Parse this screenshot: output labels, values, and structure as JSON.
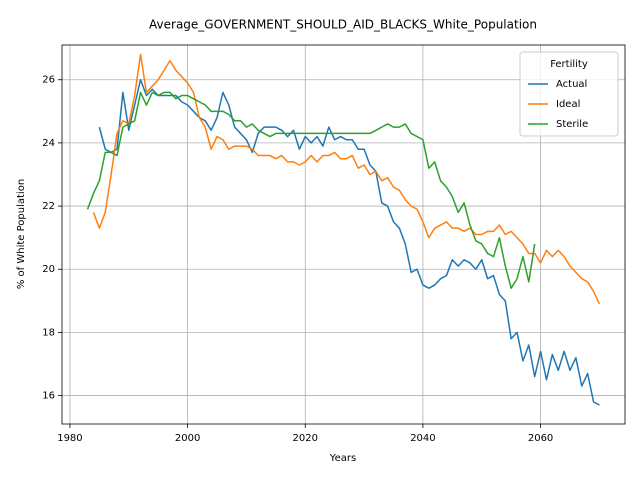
{
  "chart_data": {
    "type": "line",
    "title": "Average_GOVERNMENT_SHOULD_AID_BLACKS_White_Population",
    "x_label": "Years",
    "y_label": "% of White Population",
    "legend_title": "Fertility",
    "legend_loc": "upper right",
    "grid": true,
    "x": [
      1983,
      1984,
      1985,
      1986,
      1987,
      1988,
      1989,
      1990,
      1991,
      1992,
      1993,
      1994,
      1995,
      1996,
      1997,
      1998,
      1999,
      2000,
      2001,
      2002,
      2003,
      2004,
      2005,
      2006,
      2007,
      2008,
      2009,
      2010,
      2011,
      2012,
      2013,
      2014,
      2015,
      2016,
      2017,
      2018,
      2019,
      2020,
      2021,
      2022,
      2023,
      2024,
      2025,
      2026,
      2027,
      2028,
      2029,
      2030,
      2031,
      2032,
      2033,
      2034,
      2035,
      2036,
      2037,
      2038,
      2039,
      2040,
      2041,
      2042,
      2043,
      2044,
      2045,
      2046,
      2047,
      2048,
      2049,
      2050,
      2051,
      2052,
      2053,
      2054,
      2055,
      2056,
      2057,
      2058,
      2059,
      2060,
      2061,
      2062,
      2063,
      2064,
      2065,
      2066,
      2067,
      2068,
      2069,
      2070
    ],
    "series": [
      {
        "name": "Actual",
        "color": "#1f77b4",
        "values": [
          null,
          null,
          24.5,
          23.8,
          23.7,
          23.8,
          25.6,
          24.4,
          25.2,
          26.0,
          25.5,
          25.7,
          25.5,
          25.5,
          25.5,
          25.5,
          25.3,
          25.2,
          25.0,
          24.8,
          24.7,
          24.4,
          24.8,
          25.6,
          25.2,
          24.5,
          24.3,
          24.1,
          23.7,
          24.3,
          24.5,
          24.5,
          24.5,
          24.4,
          24.2,
          24.4,
          23.8,
          24.2,
          24.0,
          24.2,
          23.9,
          24.5,
          24.1,
          24.2,
          24.1,
          24.1,
          23.8,
          23.8,
          23.3,
          23.1,
          22.1,
          22.0,
          21.5,
          21.3,
          20.8,
          19.9,
          20.0,
          19.5,
          19.4,
          19.5,
          19.7,
          19.8,
          20.3,
          20.1,
          20.3,
          20.2,
          20.0,
          20.3,
          19.7,
          19.8,
          19.2,
          19.0,
          17.8,
          18.0,
          17.1,
          17.6,
          16.6,
          17.4,
          16.5,
          17.3,
          16.8,
          17.4,
          16.8,
          17.2,
          16.3,
          16.7,
          15.8,
          15.7
        ]
      },
      {
        "name": "Ideal",
        "color": "#ff7f0e",
        "values": [
          null,
          21.8,
          21.3,
          21.8,
          23.0,
          24.3,
          24.7,
          24.6,
          25.5,
          26.8,
          25.6,
          25.8,
          26.0,
          26.3,
          26.6,
          26.3,
          26.1,
          25.9,
          25.6,
          24.8,
          24.5,
          23.8,
          24.2,
          24.1,
          23.8,
          23.9,
          23.9,
          23.9,
          23.8,
          23.6,
          23.6,
          23.6,
          23.5,
          23.6,
          23.4,
          23.4,
          23.3,
          23.4,
          23.6,
          23.4,
          23.6,
          23.6,
          23.7,
          23.5,
          23.5,
          23.6,
          23.2,
          23.3,
          23.0,
          23.1,
          22.8,
          22.9,
          22.6,
          22.5,
          22.2,
          22.0,
          21.9,
          21.5,
          21.0,
          21.3,
          21.4,
          21.5,
          21.3,
          21.3,
          21.2,
          21.3,
          21.1,
          21.1,
          21.2,
          21.2,
          21.4,
          21.1,
          21.2,
          21.0,
          20.8,
          20.5,
          20.5,
          20.2,
          20.6,
          20.4,
          20.6,
          20.4,
          20.1,
          19.9,
          19.7,
          19.6,
          19.3,
          18.9
        ]
      },
      {
        "name": "Sterile",
        "color": "#2ca02c",
        "values": [
          21.9,
          22.4,
          22.8,
          23.7,
          23.7,
          23.6,
          24.5,
          24.6,
          24.7,
          25.6,
          25.2,
          25.6,
          25.5,
          25.6,
          25.6,
          25.4,
          25.5,
          25.5,
          25.4,
          25.3,
          25.2,
          25.0,
          25.0,
          25.0,
          24.9,
          24.7,
          24.7,
          24.5,
          24.6,
          24.4,
          24.3,
          24.2,
          24.3,
          24.3,
          24.3,
          24.3,
          24.3,
          24.3,
          24.3,
          24.3,
          24.3,
          24.3,
          24.3,
          24.3,
          24.3,
          24.3,
          24.3,
          24.3,
          24.3,
          24.4,
          24.5,
          24.6,
          24.5,
          24.5,
          24.6,
          24.3,
          24.2,
          24.1,
          23.2,
          23.4,
          22.8,
          22.6,
          22.3,
          21.8,
          22.1,
          21.4,
          20.9,
          20.8,
          20.5,
          20.4,
          21.0,
          20.1,
          19.4,
          19.7,
          20.4,
          19.6,
          20.8,
          null,
          null,
          null,
          null,
          null,
          null,
          null,
          null,
          null,
          null,
          null
        ]
      }
    ],
    "xlim": [
      1978.65,
      2074.35
    ],
    "ylim": [
      15.1,
      27.1
    ],
    "xticks": [
      1980,
      2000,
      2020,
      2040,
      2060
    ],
    "yticks": [
      16,
      18,
      20,
      22,
      24,
      26
    ]
  }
}
